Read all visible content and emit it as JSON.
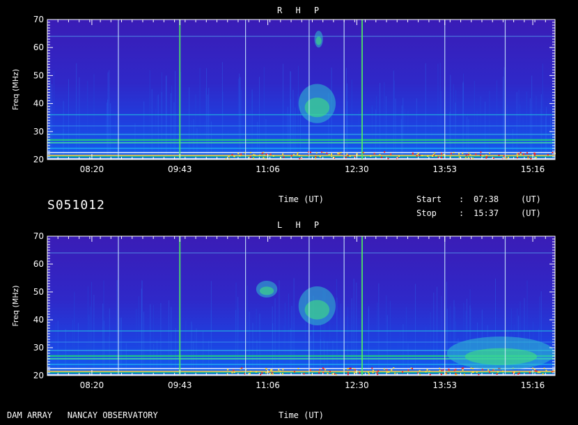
{
  "station": "DAM ARRAY   NANCAY OBSERVATORY",
  "date_code": "S051012",
  "start_label": "Start",
  "stop_label": "Stop",
  "sep": ":",
  "start_time": "07:38",
  "stop_time": "15:37",
  "ut_tag": "(UT)",
  "colors": {
    "background": "#000000",
    "quiet_sky": "#3a1cb4",
    "band": "#1fd06a",
    "hot": "#ff2020"
  },
  "chart_data": [
    {
      "type": "heatmap",
      "title": "R H P",
      "xlabel": "Time (UT)",
      "ylabel": "Freq (MHz)",
      "x_ticks": [
        "08:20",
        "09:43",
        "11:06",
        "12:30",
        "13:53",
        "15:16"
      ],
      "y_ticks": [
        20,
        30,
        40,
        50,
        60,
        70
      ],
      "ylim": [
        20,
        70
      ],
      "xlim": [
        "07:38",
        "15:37"
      ],
      "bursts": [
        {
          "t_start": "11:35",
          "t_end": "12:10",
          "f_low": 33,
          "f_high": 47
        },
        {
          "t_start": "11:50",
          "t_end": "11:58",
          "f_low": 60,
          "f_high": 66
        }
      ],
      "vertical_lines": [
        "08:45",
        "09:43",
        "10:45",
        "11:45",
        "12:18",
        "12:35",
        "13:53",
        "14:50"
      ]
    },
    {
      "type": "heatmap",
      "title": "L H P",
      "xlabel": "Time (UT)",
      "ylabel": "Freq (MHz)",
      "x_ticks": [
        "08:20",
        "09:43",
        "11:06",
        "12:30",
        "13:53",
        "15:16"
      ],
      "y_ticks": [
        20,
        30,
        40,
        50,
        60,
        70
      ],
      "ylim": [
        20,
        70
      ],
      "xlim": [
        "07:38",
        "15:37"
      ],
      "bursts": [
        {
          "t_start": "11:35",
          "t_end": "12:10",
          "f_low": 38,
          "f_high": 52
        },
        {
          "t_start": "10:55",
          "t_end": "11:15",
          "f_low": 48,
          "f_high": 54
        },
        {
          "t_start": "13:55",
          "t_end": "15:37",
          "f_low": 22,
          "f_high": 34
        }
      ],
      "vertical_lines": [
        "08:45",
        "09:43",
        "10:45",
        "11:45",
        "12:18",
        "12:35",
        "13:53",
        "14:50"
      ]
    }
  ]
}
